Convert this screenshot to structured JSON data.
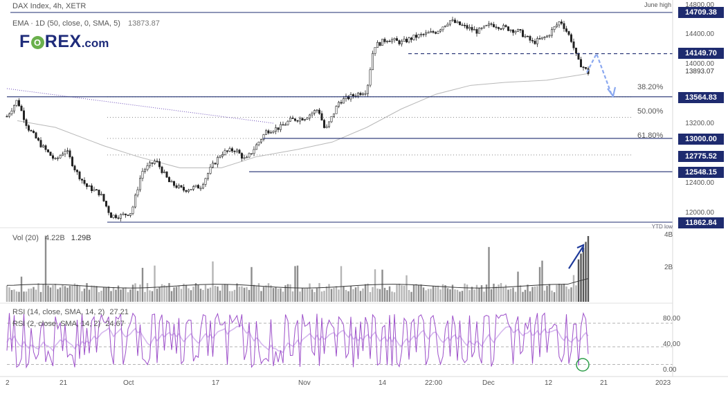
{
  "header": {
    "symbol_line": "DAX Index, 4h, XETR",
    "ema_line": "EMA · 1D (50, close, 0, SMA, 5)",
    "ema_value": "13873.87"
  },
  "logo": {
    "left": "F",
    "o": "O",
    "right": "REX",
    "domain": ".com"
  },
  "volume": {
    "label": "Vol (20)",
    "value1": "4.22B",
    "value2": "1.29B"
  },
  "rsi": {
    "line1": "RSI (14, close, SMA, 14, 2)",
    "value1": "27.21",
    "line2": "RSI (2, close, SMA, 14, 2)",
    "value2": "24.67"
  },
  "colors": {
    "level": "#1e2b6f",
    "ema": "#b8b8b8",
    "volume": "#b5b5b5",
    "rsi": "#9c4ec9",
    "rsi_ma": "#d5b8ee",
    "arrow_light": "#8aa8f0",
    "arrow_dark": "#1e3a9a",
    "circle": "#2e9e4a"
  },
  "chart_data": [
    {
      "type": "candlestick",
      "title": "DAX Index, 4h, XETR",
      "y_axis_ticks": [
        "14800.00",
        "14400.00",
        "14000.00",
        "13200.00",
        "12400.00",
        "12000.00"
      ],
      "x_axis_ticks": [
        "2",
        "21",
        "Oct",
        "17",
        "Nov",
        "14",
        "22:00",
        "Dec",
        "12",
        "21",
        "2023"
      ],
      "ylim": [
        11800,
        14800
      ],
      "price_labels": [
        "14709.38",
        "14149.70",
        "13893.07",
        "13564.83",
        "13000.00",
        "12775.52",
        "12548.15",
        "11862.84"
      ],
      "annotations": {
        "june_high": "June high",
        "ytd_low": "YTD low"
      },
      "fib_levels": [
        {
          "label": "38.20%",
          "value": 13564.83
        },
        {
          "label": "50.00%",
          "value": 13286
        },
        {
          "label": "61.80%",
          "value": 13000
        }
      ],
      "key_levels": [
        14709.38,
        14149.7,
        13564.83,
        13000.0,
        12548.15,
        11862.84
      ],
      "series": [
        {
          "name": "close",
          "x": [
            "2",
            "21",
            "Oct",
            "17",
            "Nov",
            "14",
            "22:00",
            "Dec",
            "12",
            "21"
          ],
          "values": [
            13300,
            12750,
            12000,
            12500,
            13150,
            14250,
            14550,
            14470,
            14450,
            13893
          ]
        }
      ]
    },
    {
      "type": "bar",
      "title": "Vol (20)",
      "y_axis_ticks": [
        "4B",
        "2B"
      ],
      "values_labels": [
        "4.22B",
        "1.29B"
      ]
    },
    {
      "type": "line",
      "title": "RSI",
      "y_axis_ticks": [
        "80.00",
        "40.00",
        "0.00"
      ],
      "ylim": [
        0,
        100
      ],
      "series": [
        {
          "name": "RSI (14, close, SMA, 14, 2)",
          "last": 27.21
        },
        {
          "name": "RSI (2, close, SMA, 14, 2)",
          "last": 24.67
        }
      ]
    }
  ]
}
